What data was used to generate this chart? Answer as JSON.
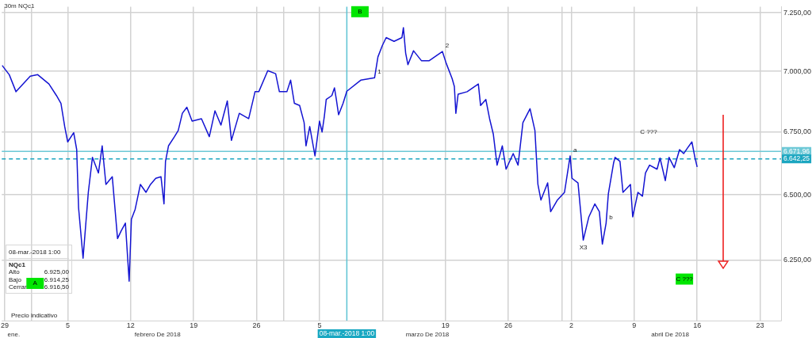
{
  "chart_data": [
    {
      "type": "line",
      "title": "30m NQc1",
      "xlim": [
        "2018-01-28T16:00",
        "2018-04-25T08:00"
      ],
      "xticks": [
        {
          "value": "2018-01-29",
          "label": "29"
        },
        {
          "value": "2018-02-05",
          "label": "5"
        },
        {
          "value": "2018-02-12",
          "label": "12"
        },
        {
          "value": "2018-02-19",
          "label": "19"
        },
        {
          "value": "2018-02-26",
          "label": "26"
        },
        {
          "value": "2018-03-05",
          "label": "5"
        },
        {
          "value": "2018-03-12",
          "label": null
        },
        {
          "value": "2018-03-19",
          "label": "19"
        },
        {
          "value": "2018-03-26",
          "label": "26"
        },
        {
          "value": "2018-04-02",
          "label": "2"
        },
        {
          "value": "2018-04-09",
          "label": "9"
        },
        {
          "value": "2018-04-16",
          "label": "16"
        },
        {
          "value": "2018-04-23",
          "label": "23"
        }
      ],
      "x2lim": [
        "2018-01-28T16:00",
        "2018-04-25T08:00"
      ],
      "x2ticks": [
        {
          "value": "2018-01-30",
          "label": "ene."
        },
        {
          "value": "2018-02-01",
          "label": null
        },
        {
          "value": "2018-02-15",
          "label": "febrero De 2018"
        },
        {
          "value": "2018-03-01",
          "label": null
        },
        {
          "value": "2018-03-17",
          "label": "marzo De 2018"
        },
        {
          "value": "2018-04-01",
          "label": null
        },
        {
          "value": "2018-04-13",
          "label": "abril De 2018"
        }
      ],
      "ylim": [
        6028,
        7277
      ],
      "yticks": [
        {
          "value": 6250,
          "label": "6.250,00"
        },
        {
          "value": 6500,
          "label": "6.500,00"
        },
        {
          "value": 6750,
          "label": "6.750,00"
        },
        {
          "value": 7000,
          "label": "7.000,00"
        },
        {
          "value": 7250,
          "label": "7.250,00"
        }
      ],
      "log": true,
      "grid": true,
      "legend": false,
      "ref_lines": [
        {
          "axis": "y",
          "value": 6671.96,
          "label": "6.671,96",
          "color": "#6cc8d6",
          "line_style": "solid"
        },
        {
          "axis": "y",
          "value": 6642.25,
          "label": "6.642,25",
          "color": "#1ca6c0",
          "line_style": "dashed"
        },
        {
          "axis": "x",
          "value": "2018-03-08T01:00",
          "label": "08-mar.-2018 1:00",
          "color": "#5cc3d3",
          "line_style": "solid"
        }
      ],
      "annotations": [
        {
          "text": "1",
          "x": "2018-03-11T03:00",
          "y": 6973
        },
        {
          "text": "2",
          "x": "2018-03-18T16:00",
          "y": 7084
        },
        {
          "text": "a",
          "x": "2018-04-01T21:00",
          "y": 6654
        },
        {
          "text": "b",
          "x": "2018-04-05T21:00",
          "y": 6391
        },
        {
          "text": "X3",
          "x": "2018-04-03T08:00",
          "y": 6326
        },
        "C ???",
        "Precio indicativo"
      ],
      "series": [
        {
          "type": "line",
          "color": "#1414d2",
          "marker": "none",
          "line_style": "solid",
          "x": [
            "2018-01-28T17:00",
            "2018-01-29T12:00",
            "2018-01-30T06:00",
            "2018-01-31T20:00",
            "2018-02-01T16:00",
            "2018-02-02T22:00",
            "2018-02-03T18:00",
            "2018-02-04T06:00",
            "2018-02-04T16:00",
            "2018-02-05T00:00",
            "2018-02-05T16:00",
            "2018-02-06T00:00",
            "2018-02-06T05:00",
            "2018-02-06T17:00",
            "2018-02-07T07:00",
            "2018-02-07T18:00",
            "2018-02-08T10:00",
            "2018-02-08T20:00",
            "2018-02-09T06:00",
            "2018-02-09T23:00",
            "2018-02-10T13:00",
            "2018-02-10T23:00",
            "2018-02-11T10:00",
            "2018-02-11T20:00",
            "2018-02-12T02:00",
            "2018-02-12T12:00",
            "2018-02-13T02:00",
            "2018-02-13T17:00",
            "2018-02-14T05:00",
            "2018-02-14T19:00",
            "2018-02-15T09:00",
            "2018-02-15T17:00",
            "2018-02-15T21:00",
            "2018-02-16T05:00",
            "2018-02-16T21:00",
            "2018-02-17T07:00",
            "2018-02-17T18:00",
            "2018-02-18T06:00",
            "2018-02-18T20:00",
            "2018-02-19T21:00",
            "2018-02-20T18:00",
            "2018-02-21T09:00",
            "2018-02-22T01:00",
            "2018-02-22T18:00",
            "2018-02-23T05:00",
            "2018-02-24T02:00",
            "2018-02-25T03:00",
            "2018-02-25T20:00",
            "2018-02-26T06:00",
            "2018-02-27T06:00",
            "2018-02-28T03:00",
            "2018-02-28T13:00",
            "2018-03-01T09:00",
            "2018-03-01T19:00",
            "2018-03-02T05:00",
            "2018-03-02T19:00",
            "2018-03-03T07:00",
            "2018-03-03T12:00",
            "2018-03-03T22:00",
            "2018-03-04T12:00",
            "2018-03-05T00:00",
            "2018-03-05T07:00",
            "2018-03-05T13:00",
            "2018-03-05T18:00",
            "2018-03-06T09:00",
            "2018-03-06T16:00",
            "2018-03-06T21:00",
            "2018-03-07T03:00",
            "2018-03-07T15:00",
            "2018-03-08T01:00",
            "2018-03-09T14:00",
            "2018-03-11T03:00",
            "2018-03-11T12:00",
            "2018-03-12T00:00",
            "2018-03-12T10:00",
            "2018-03-13T07:00",
            "2018-03-14T04:00",
            "2018-03-14T08:00",
            "2018-03-14T14:00",
            "2018-03-14T20:00",
            "2018-03-15T11:00",
            "2018-03-16T08:00",
            "2018-03-17T05:00",
            "2018-03-18T16:00",
            "2018-03-19T02:00",
            "2018-03-19T18:00",
            "2018-03-20T00:00",
            "2018-03-20T04:00",
            "2018-03-20T10:00",
            "2018-03-21T10:00",
            "2018-03-22T16:00",
            "2018-03-22T22:00",
            "2018-03-23T12:00",
            "2018-03-23T22:00",
            "2018-03-24T08:00",
            "2018-03-24T18:00",
            "2018-03-25T08:00",
            "2018-03-25T18:00",
            "2018-03-26T13:00",
            "2018-03-27T02:00",
            "2018-03-27T15:00",
            "2018-03-28T10:00",
            "2018-03-28T23:00",
            "2018-03-29T07:00",
            "2018-03-29T15:00",
            "2018-03-30T09:00",
            "2018-03-30T17:00",
            "2018-03-31T11:00",
            "2018-04-01T06:00",
            "2018-04-01T21:00",
            "2018-04-02T02:00",
            "2018-04-02T18:00",
            "2018-04-03T02:00",
            "2018-04-03T08:00",
            "2018-04-03T23:00",
            "2018-04-04T15:00",
            "2018-04-05T03:00",
            "2018-04-05T11:00",
            "2018-04-05T21:00",
            "2018-04-06T03:00",
            "2018-04-06T17:00",
            "2018-04-06T21:00",
            "2018-04-07T10:00",
            "2018-04-07T18:00",
            "2018-04-08T14:00",
            "2018-04-08T20:00",
            "2018-04-09T10:00",
            "2018-04-09T22:00",
            "2018-04-10T06:00",
            "2018-04-10T17:00",
            "2018-04-11T13:00",
            "2018-04-11T21:00",
            "2018-04-12T11:00",
            "2018-04-12T21:00",
            "2018-04-13T11:00",
            "2018-04-14T01:00",
            "2018-04-14T12:00",
            "2018-04-14T22:00",
            "2018-04-15T10:00",
            "2018-04-15T18:00",
            "2018-04-16T00:00"
          ],
          "values": [
            7025,
            6986,
            6915,
            6980,
            6986,
            6947,
            6899,
            6867,
            6772,
            6710,
            6747,
            6679,
            6450,
            6258,
            6510,
            6648,
            6586,
            6694,
            6541,
            6571,
            6332,
            6362,
            6391,
            6172,
            6406,
            6444,
            6541,
            6510,
            6541,
            6565,
            6571,
            6465,
            6632,
            6694,
            6731,
            6756,
            6826,
            6851,
            6794,
            6804,
            6731,
            6836,
            6778,
            6877,
            6716,
            6826,
            6804,
            6915,
            6915,
            7003,
            6990,
            6915,
            6915,
            6963,
            6867,
            6858,
            6788,
            6694,
            6772,
            6654,
            6794,
            6750,
            6814,
            6883,
            6899,
            6931,
            6883,
            6820,
            6867,
            6917,
            6963,
            6973,
            7061,
            7110,
            7143,
            7127,
            7143,
            7186,
            7077,
            7028,
            7087,
            7045,
            7045,
            7084,
            7035,
            6970,
            6937,
            6826,
            6905,
            6915,
            6947,
            6858,
            6883,
            6804,
            6741,
            6617,
            6694,
            6601,
            6663,
            6617,
            6788,
            6845,
            6756,
            6541,
            6480,
            6547,
            6435,
            6480,
            6510,
            6654,
            6565,
            6547,
            6421,
            6326,
            6415,
            6465,
            6435,
            6311,
            6391,
            6504,
            6626,
            6648,
            6632,
            6510,
            6541,
            6415,
            6510,
            6495,
            6586,
            6617,
            6601,
            6645,
            6556,
            6648,
            6607,
            6679,
            6663,
            6685,
            6710,
            6648,
            6610
          ]
        },
        {
          "type": "scatter",
          "color": "#00e600",
          "marker": "square",
          "x": [
            "2018-02-01T09:00",
            "2018-03-09T12:00",
            "2018-04-14T14:00"
          ],
          "values": [
            6164,
            7255,
            6180
          ],
          "value_labels": [
            "A",
            "B",
            "C ???"
          ]
        }
      ]
    },
    {
      "type": "other",
      "title": "08-mar.-2018 1:00",
      "subtitle": "NQc1",
      "annotations": [
        "Alto",
        "6.925,00",
        "Bajo",
        "6.914,25",
        "Cerrar",
        "6.916,50"
      ]
    }
  ]
}
